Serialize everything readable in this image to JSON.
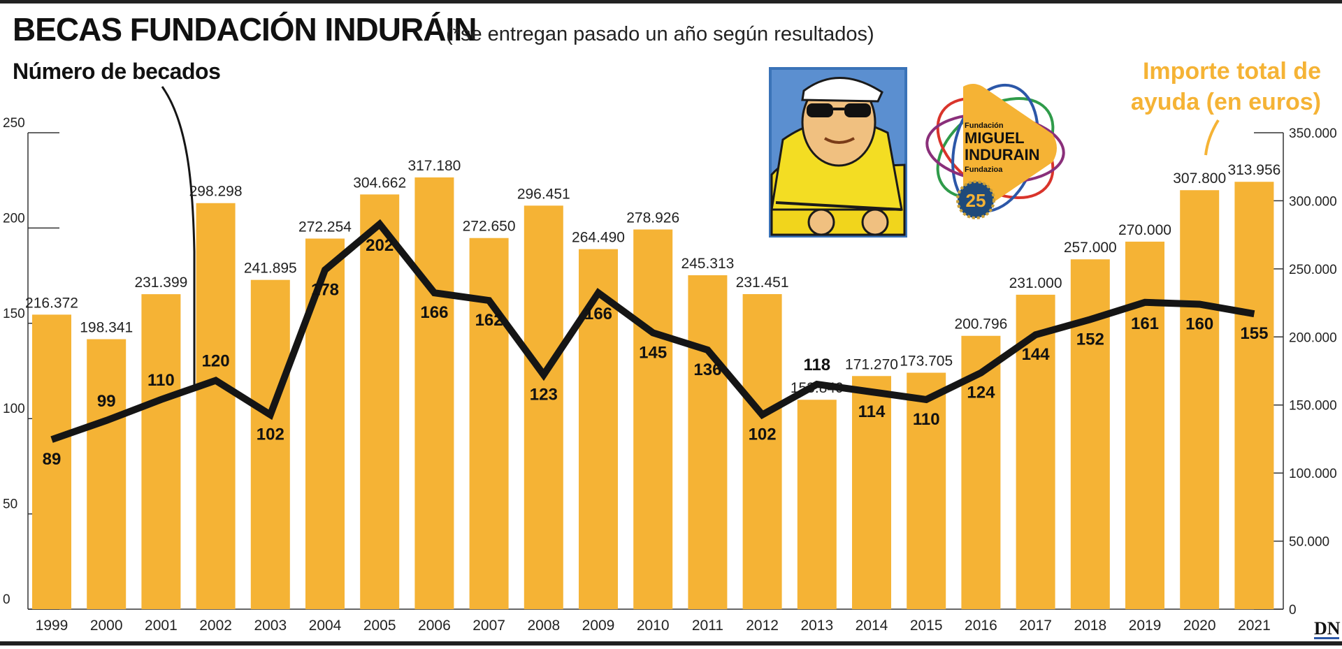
{
  "header": {
    "title": "BECAS FUNDACIÓN INDURÁIN",
    "subtitle": "(*se entregan pasado un año según resultados)"
  },
  "labels": {
    "left_series": "Número de becados",
    "right_series_line1": "Importe total de",
    "right_series_line2": "ayuda (en euros)"
  },
  "logo": {
    "line_top": "Fundación",
    "line_1": "MIGUEL",
    "line_2": "INDURAIN",
    "line_bottom": "Fundazioa",
    "badge": "25"
  },
  "credit": "DN",
  "colors": {
    "bar": "#F5B335",
    "line": "#151515",
    "right_label": "#F5B335",
    "top_rule": "#222222"
  },
  "chart_data": {
    "type": "bar+line",
    "categories": [
      "1999",
      "2000",
      "2001",
      "2002",
      "2003",
      "2004",
      "2005",
      "2006",
      "2007",
      "2008",
      "2009",
      "2010",
      "2011",
      "2012",
      "2013",
      "2014",
      "2015",
      "2016",
      "2017",
      "2018",
      "2019",
      "2020",
      "2021"
    ],
    "series": [
      {
        "name": "Importe total de ayuda (en euros)",
        "type": "bar",
        "axis": "right",
        "values": [
          216372,
          198341,
          231399,
          298298,
          241895,
          272254,
          304662,
          317180,
          272650,
          296451,
          264490,
          278926,
          245313,
          231451,
          153840,
          171270,
          173705,
          200796,
          231000,
          257000,
          270000,
          307800,
          313956
        ],
        "labels": [
          "216.372",
          "198.341",
          "231.399",
          "298.298",
          "241.895",
          "272.254",
          "304.662",
          "317.180",
          "272.650",
          "296.451",
          "264.490",
          "278.926",
          "245.313",
          "231.451",
          "153.840",
          "171.270",
          "173.705",
          "200.796",
          "231.000",
          "257.000",
          "270.000",
          "307.800",
          "313.956"
        ]
      },
      {
        "name": "Número de becados",
        "type": "line",
        "axis": "left",
        "values": [
          89,
          99,
          110,
          120,
          102,
          178,
          202,
          166,
          162,
          123,
          166,
          145,
          136,
          102,
          118,
          114,
          110,
          124,
          144,
          152,
          161,
          160,
          155
        ]
      }
    ],
    "left_axis": {
      "ylim": [
        0,
        250
      ],
      "ticks": [
        "0",
        "50",
        "100",
        "150",
        "200",
        "250"
      ]
    },
    "right_axis": {
      "ylim": [
        0,
        350000
      ],
      "ticks": [
        "0",
        "50.000",
        "100.000",
        "150.000",
        "200.000",
        "250.000",
        "300.000",
        "350.000"
      ]
    },
    "grid": false,
    "legend": "none"
  }
}
